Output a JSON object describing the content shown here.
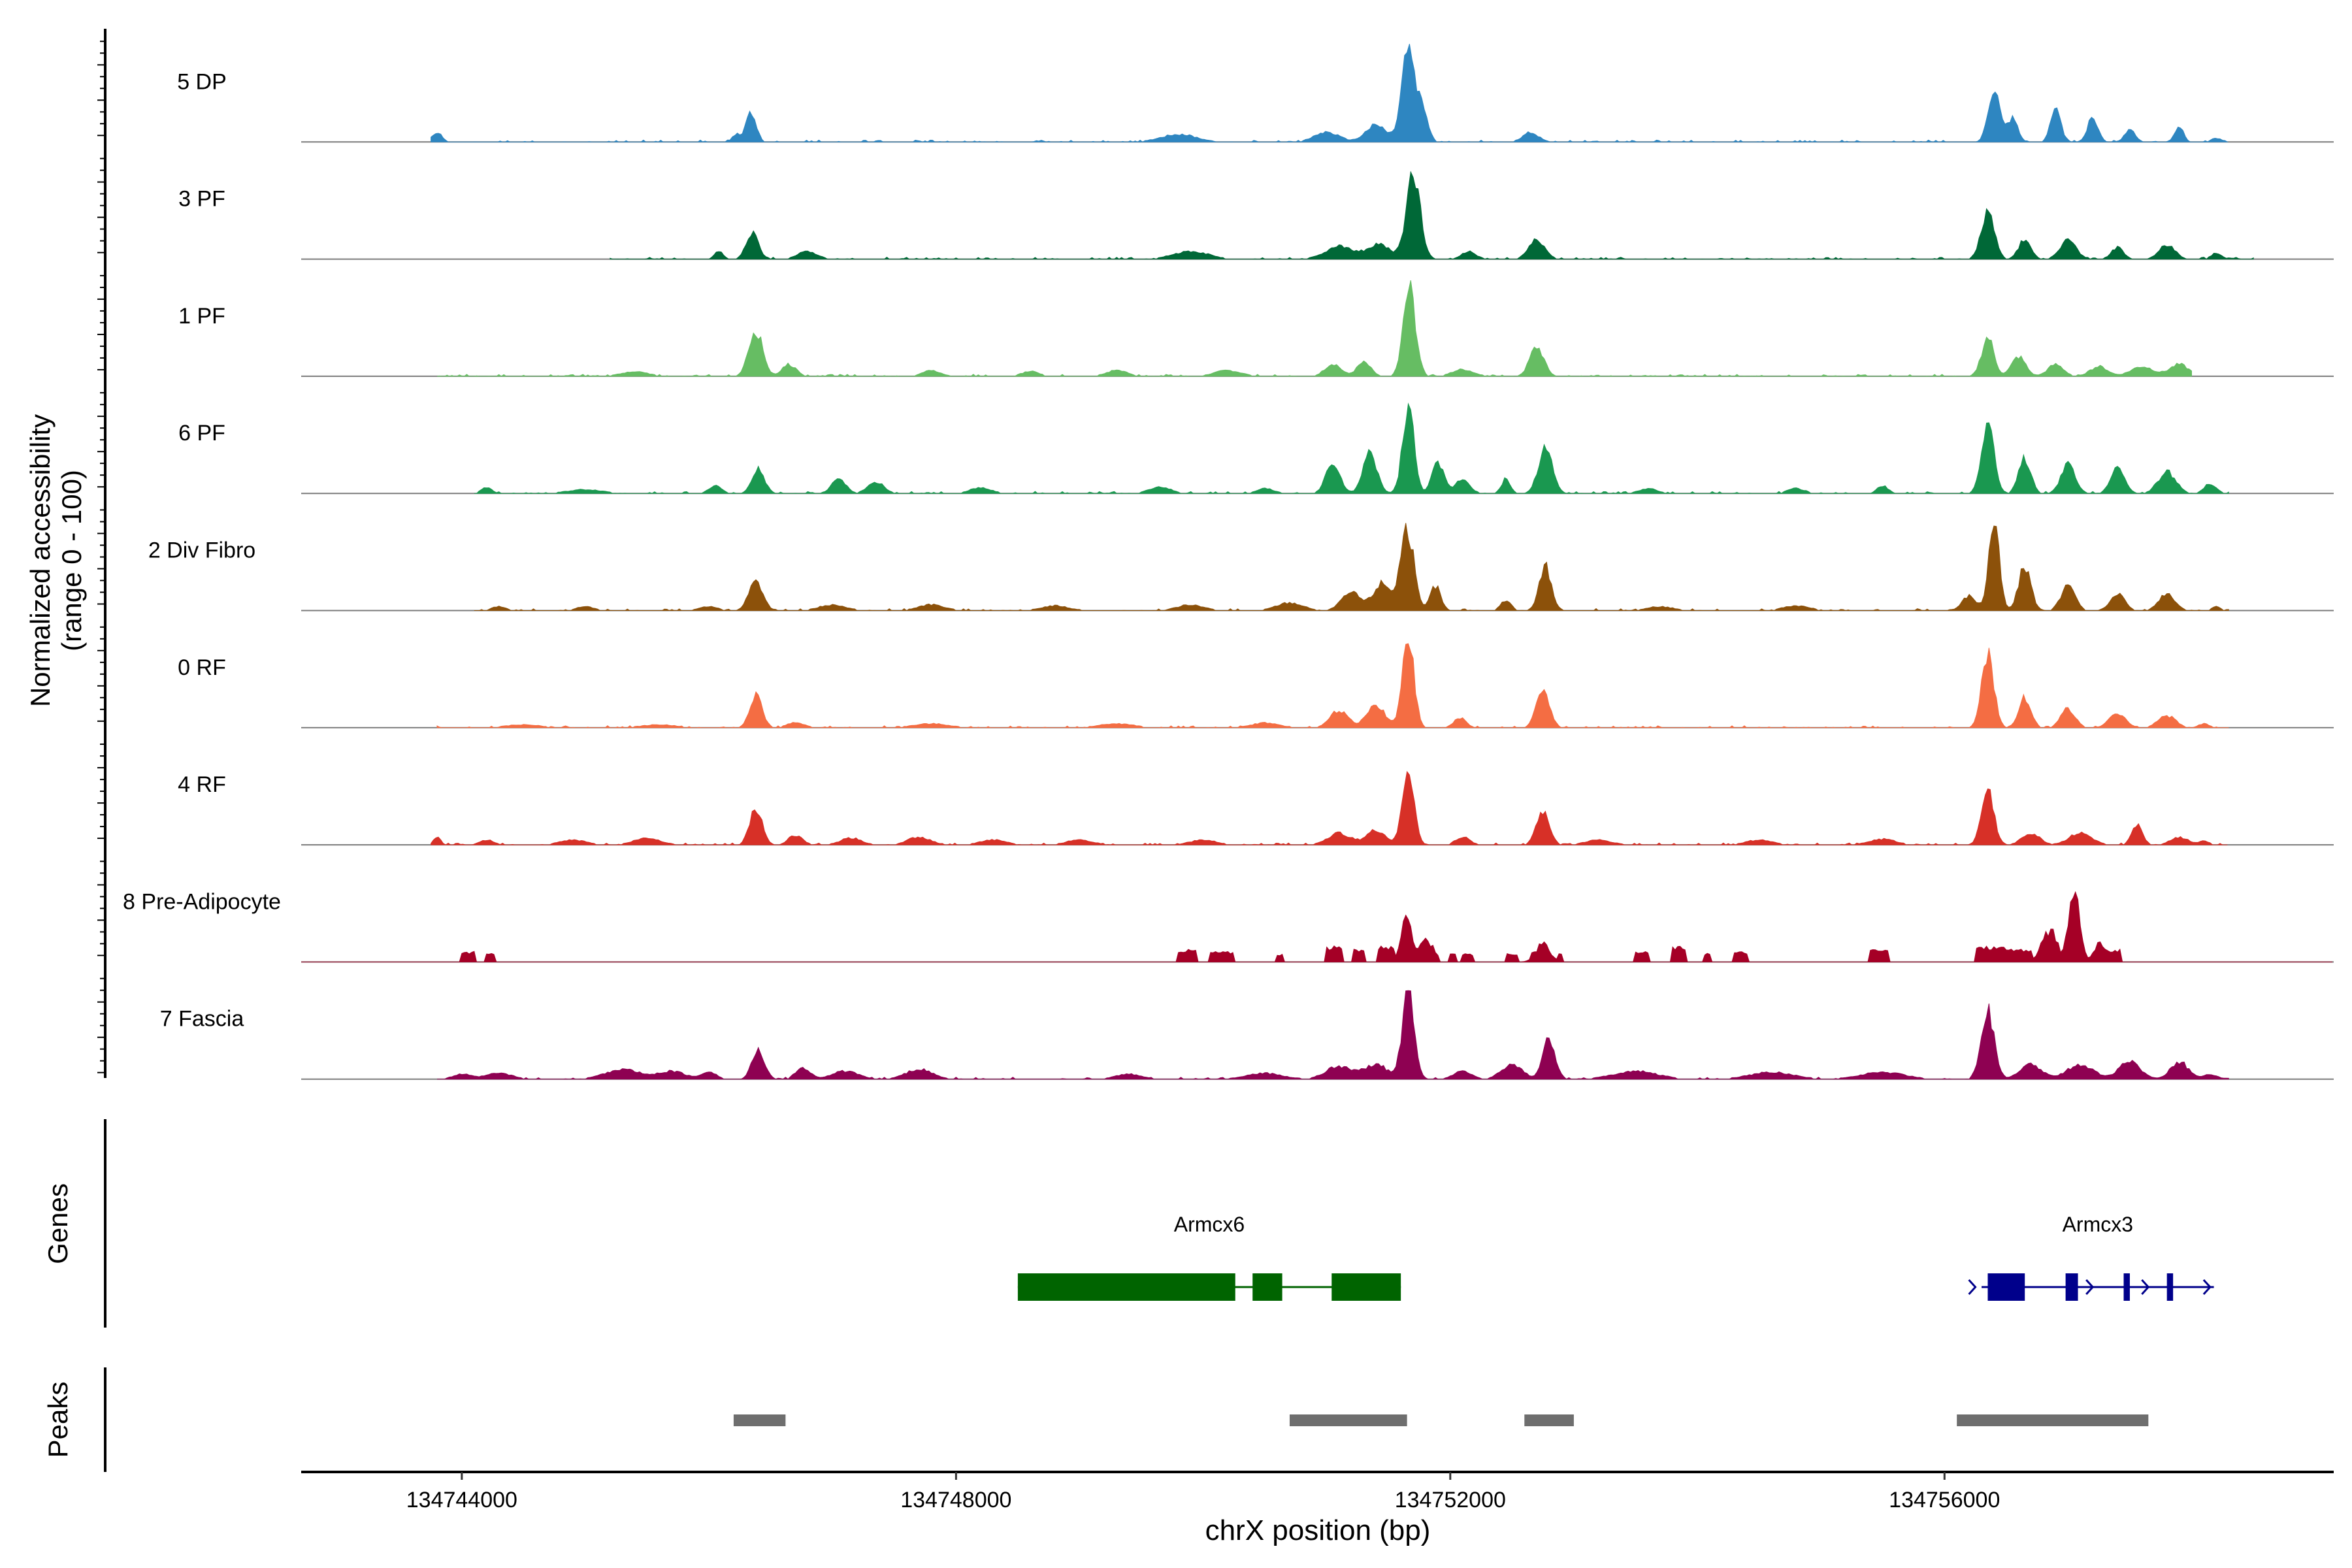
{
  "chart_data": {
    "type": "area",
    "title": "",
    "xlabel": "chrX position (bp)",
    "ylabel": "Normalized accessibility (range 0 - 100)",
    "ylabel_lines": [
      "Normalized accessibility",
      "(range 0 - 100)"
    ],
    "xlim": [
      134742700,
      134759150
    ],
    "ylim": [
      0,
      100
    ],
    "x_ticks": [
      134744000,
      134748000,
      134752000,
      134756000
    ],
    "x_tick_labels": [
      "134744000",
      "134748000",
      "134752000",
      "134756000"
    ],
    "tracks": [
      {
        "name": "5 DP",
        "color": "#2e86c1",
        "seed": 11,
        "signal_range": [
          134743750,
          134758300
        ],
        "peaks": [
          [
            134743800,
            10,
            55
          ],
          [
            134746340,
            30,
            60
          ],
          [
            134746220,
            8,
            40
          ],
          [
            134749800,
            8,
            200
          ],
          [
            134751000,
            10,
            140
          ],
          [
            134751400,
            17,
            120
          ],
          [
            134751660,
            95,
            75
          ],
          [
            134751780,
            30,
            60
          ],
          [
            134752650,
            10,
            90
          ],
          [
            134756400,
            58,
            65
          ],
          [
            134756550,
            25,
            60
          ],
          [
            134756900,
            32,
            60
          ],
          [
            134757200,
            25,
            60
          ],
          [
            134757500,
            12,
            60
          ],
          [
            134757900,
            15,
            50
          ],
          [
            134758200,
            4,
            60
          ]
        ]
      },
      {
        "name": "3 PF",
        "color": "#006837",
        "seed": 22,
        "signal_range": [
          134745200,
          134758500
        ],
        "peaks": [
          [
            134745100,
            4,
            60
          ],
          [
            134746080,
            8,
            50
          ],
          [
            134746350,
            28,
            70
          ],
          [
            134746800,
            8,
            110
          ],
          [
            134749900,
            8,
            200
          ],
          [
            134751100,
            13,
            160
          ],
          [
            134751420,
            15,
            130
          ],
          [
            134751700,
            85,
            80
          ],
          [
            134752700,
            20,
            90
          ],
          [
            134752150,
            8,
            80
          ],
          [
            134756350,
            48,
            75
          ],
          [
            134756650,
            20,
            70
          ],
          [
            134757000,
            20,
            90
          ],
          [
            134757400,
            12,
            70
          ],
          [
            134757800,
            15,
            90
          ],
          [
            134758200,
            6,
            60
          ]
        ]
      },
      {
        "name": "1 PF",
        "color": "#66bd63",
        "seed": 33,
        "signal_range": [
          134743800,
          134758000
        ],
        "peaks": [
          [
            134745400,
            5,
            150
          ],
          [
            134746380,
            45,
            80
          ],
          [
            134746650,
            12,
            80
          ],
          [
            134747800,
            6,
            100
          ],
          [
            134748600,
            5,
            100
          ],
          [
            134749300,
            6,
            120
          ],
          [
            134750200,
            6,
            150
          ],
          [
            134751050,
            13,
            90
          ],
          [
            134751300,
            14,
            80
          ],
          [
            134751670,
            90,
            70
          ],
          [
            134752100,
            7,
            120
          ],
          [
            134752700,
            30,
            80
          ],
          [
            134756350,
            40,
            70
          ],
          [
            134756600,
            20,
            80
          ],
          [
            134756900,
            12,
            90
          ],
          [
            134757250,
            10,
            100
          ],
          [
            134757600,
            10,
            130
          ],
          [
            134757900,
            12,
            110
          ]
        ]
      },
      {
        "name": "6 PF",
        "color": "#1a9850",
        "seed": 44,
        "signal_range": [
          134744100,
          134758300
        ],
        "peaks": [
          [
            134744200,
            6,
            60
          ],
          [
            134745000,
            4,
            200
          ],
          [
            134746050,
            8,
            70
          ],
          [
            134746400,
            25,
            70
          ],
          [
            134747050,
            15,
            80
          ],
          [
            134747350,
            12,
            90
          ],
          [
            134748200,
            6,
            120
          ],
          [
            134749650,
            7,
            120
          ],
          [
            134750500,
            5,
            100
          ],
          [
            134751050,
            30,
            80
          ],
          [
            134751350,
            40,
            80
          ],
          [
            134751660,
            90,
            65
          ],
          [
            134751900,
            30,
            70
          ],
          [
            134752100,
            15,
            80
          ],
          [
            134752450,
            15,
            50
          ],
          [
            134752770,
            45,
            80
          ],
          [
            134753600,
            5,
            100
          ],
          [
            134754800,
            5,
            100
          ],
          [
            134755500,
            8,
            60
          ],
          [
            134756350,
            75,
            70
          ],
          [
            134756650,
            35,
            70
          ],
          [
            134757000,
            30,
            80
          ],
          [
            134757400,
            25,
            80
          ],
          [
            134757800,
            22,
            100
          ],
          [
            134758150,
            10,
            70
          ]
        ]
      },
      {
        "name": "2 Div Fibro",
        "color": "#8c510a",
        "seed": 55,
        "signal_range": [
          134744100,
          134758300
        ],
        "peaks": [
          [
            134744300,
            4,
            80
          ],
          [
            134745000,
            4,
            100
          ],
          [
            134746000,
            4,
            100
          ],
          [
            134746380,
            30,
            80
          ],
          [
            134747000,
            6,
            150
          ],
          [
            134747800,
            6,
            150
          ],
          [
            134748800,
            5,
            150
          ],
          [
            134749900,
            6,
            150
          ],
          [
            134750700,
            8,
            150
          ],
          [
            134751200,
            18,
            110
          ],
          [
            134751450,
            28,
            100
          ],
          [
            134751650,
            85,
            75
          ],
          [
            134751880,
            25,
            60
          ],
          [
            134752450,
            10,
            60
          ],
          [
            134752770,
            45,
            70
          ],
          [
            134753700,
            4,
            150
          ],
          [
            134754800,
            5,
            150
          ],
          [
            134756200,
            15,
            80
          ],
          [
            134756400,
            90,
            60
          ],
          [
            134756650,
            45,
            70
          ],
          [
            134757000,
            25,
            80
          ],
          [
            134757400,
            18,
            80
          ],
          [
            134757800,
            18,
            90
          ],
          [
            134758200,
            4,
            50
          ]
        ]
      },
      {
        "name": "0 RF",
        "color": "#f46d43",
        "seed": 66,
        "signal_range": [
          134743800,
          134758300
        ],
        "peaks": [
          [
            134744500,
            3,
            200
          ],
          [
            134745600,
            3,
            200
          ],
          [
            134746380,
            35,
            70
          ],
          [
            134746700,
            5,
            100
          ],
          [
            134747800,
            4,
            200
          ],
          [
            134749300,
            4,
            200
          ],
          [
            134750500,
            5,
            150
          ],
          [
            134751100,
            18,
            100
          ],
          [
            134751400,
            22,
            110
          ],
          [
            134751660,
            90,
            65
          ],
          [
            134752080,
            10,
            70
          ],
          [
            134752750,
            40,
            75
          ],
          [
            134756350,
            75,
            70
          ],
          [
            134756650,
            30,
            70
          ],
          [
            134757000,
            20,
            80
          ],
          [
            134757400,
            15,
            90
          ],
          [
            134757800,
            12,
            100
          ],
          [
            134758100,
            4,
            60
          ]
        ]
      },
      {
        "name": "4 RF",
        "color": "#d73027",
        "seed": 77,
        "signal_range": [
          134743750,
          134758300
        ],
        "peaks": [
          [
            134743800,
            8,
            40
          ],
          [
            134744200,
            5,
            80
          ],
          [
            134744900,
            5,
            150
          ],
          [
            134745500,
            7,
            150
          ],
          [
            134746380,
            38,
            70
          ],
          [
            134746700,
            10,
            80
          ],
          [
            134747150,
            7,
            120
          ],
          [
            134747700,
            8,
            130
          ],
          [
            134748300,
            5,
            150
          ],
          [
            134749000,
            5,
            150
          ],
          [
            134750000,
            5,
            150
          ],
          [
            134751100,
            12,
            130
          ],
          [
            134751400,
            15,
            110
          ],
          [
            134751660,
            80,
            65
          ],
          [
            134752100,
            8,
            80
          ],
          [
            134752750,
            35,
            75
          ],
          [
            134753200,
            5,
            150
          ],
          [
            134754500,
            5,
            150
          ],
          [
            134755500,
            6,
            150
          ],
          [
            134756350,
            58,
            70
          ],
          [
            134756700,
            12,
            100
          ],
          [
            134757100,
            12,
            130
          ],
          [
            134757560,
            22,
            60
          ],
          [
            134757900,
            8,
            100
          ],
          [
            134758100,
            4,
            60
          ]
        ]
      },
      {
        "name": "8 Pre-Adipocyte",
        "color": "#a50026",
        "seed": 88,
        "signal_range": [
          134744000,
          134757700
        ],
        "peaks": [],
        "blocks": [
          [
            134744000,
            134744100,
            10
          ],
          [
            134744200,
            134744260,
            8
          ],
          [
            134749800,
            134749950,
            12
          ],
          [
            134750050,
            134750250,
            10
          ],
          [
            134750600,
            134750650,
            8
          ],
          [
            134751000,
            134751120,
            15
          ],
          [
            134751220,
            134751300,
            12
          ],
          [
            134751420,
            134751550,
            15
          ],
          [
            134752000,
            134752050,
            10
          ],
          [
            134752100,
            134752180,
            8
          ],
          [
            134752450,
            134752550,
            8
          ],
          [
            134752650,
            134752780,
            10
          ],
          [
            134752880,
            134752900,
            8
          ],
          [
            134753500,
            134753600,
            10
          ],
          [
            134753800,
            134753900,
            15
          ],
          [
            134754050,
            134754100,
            8
          ],
          [
            134754300,
            134754400,
            10
          ],
          [
            134755400,
            134755550,
            12
          ],
          [
            134756250,
            134756500,
            15
          ],
          [
            134756500,
            134756700,
            12
          ],
          [
            134757300,
            134757420,
            12
          ]
        ],
        "extra_peaks": [
          [
            134751650,
            55,
            60
          ],
          [
            134751800,
            25,
            90
          ],
          [
            134752750,
            20,
            80
          ],
          [
            134756850,
            35,
            90
          ],
          [
            134757050,
            70,
            70
          ],
          [
            134757250,
            20,
            60
          ]
        ],
        "peak_range": [
          134751400,
          134751900,
          134752550,
          134752900,
          134756700,
          134757300
        ]
      },
      {
        "name": "7 Fascia",
        "color": "#8e0152",
        "seed": 99,
        "signal_range": [
          134743800,
          134758300
        ],
        "peaks": [
          [
            134744000,
            5,
            100
          ],
          [
            134744300,
            6,
            150
          ],
          [
            134745300,
            10,
            200
          ],
          [
            134745700,
            8,
            150
          ],
          [
            134746000,
            8,
            80
          ],
          [
            134746400,
            30,
            70
          ],
          [
            134746760,
            12,
            80
          ],
          [
            134747100,
            8,
            150
          ],
          [
            134747700,
            10,
            150
          ],
          [
            134749400,
            5,
            150
          ],
          [
            134750500,
            6,
            200
          ],
          [
            134751100,
            13,
            150
          ],
          [
            134751400,
            15,
            130
          ],
          [
            134751660,
            85,
            70
          ],
          [
            134752100,
            8,
            100
          ],
          [
            134752500,
            15,
            120
          ],
          [
            134752800,
            40,
            70
          ],
          [
            134753500,
            8,
            250
          ],
          [
            134754600,
            7,
            250
          ],
          [
            134755500,
            7,
            250
          ],
          [
            134756350,
            70,
            75
          ],
          [
            134756700,
            15,
            120
          ],
          [
            134757100,
            15,
            150
          ],
          [
            134757500,
            18,
            120
          ],
          [
            134757900,
            18,
            100
          ],
          [
            134758150,
            5,
            80
          ]
        ]
      }
    ],
    "genes": [
      {
        "name": "Armcx6",
        "color": "#006400",
        "start": 134748500,
        "end": 134751600,
        "strand": "+",
        "exons": [
          [
            134748500,
            134750260
          ],
          [
            134750400,
            134750640
          ],
          [
            134751040,
            134751600
          ]
        ]
      },
      {
        "name": "Armcx3",
        "color": "#00008b",
        "start": 134756300,
        "end": 134758180,
        "strand": "+",
        "exons": [
          [
            134756350,
            134756650
          ],
          [
            134756980,
            134757080
          ],
          [
            134757450,
            134757500
          ],
          [
            134757800,
            134757850
          ]
        ]
      }
    ],
    "peaks_track": [
      [
        134746200,
        134746620
      ],
      [
        134750700,
        134751650
      ],
      [
        134752600,
        134753000
      ],
      [
        134756100,
        134757650
      ]
    ],
    "track_panel_labels": {
      "genes": "Genes",
      "peaks": "Peaks"
    }
  }
}
